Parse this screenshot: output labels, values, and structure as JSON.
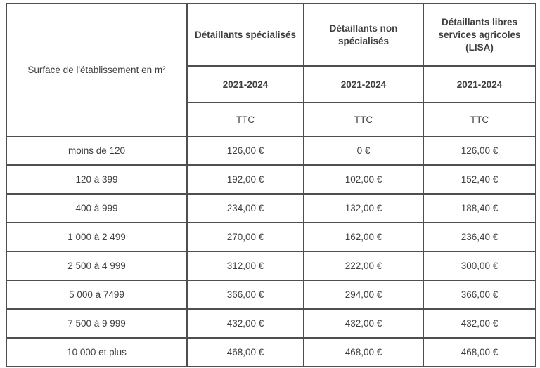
{
  "table": {
    "corner_header": "Surface de l'établissement en m²",
    "columns": [
      {
        "title": "Détaillants spécialisés",
        "period": "2021-2024",
        "tax": "TTC"
      },
      {
        "title": "Détaillants non spécialisés",
        "period": "2021-2024",
        "tax": "TTC"
      },
      {
        "title": "Détaillants libres services agricoles (LISA)",
        "period": "2021-2024",
        "tax": "TTC"
      }
    ],
    "rows": [
      {
        "surface": "moins de 120",
        "values": [
          "126,00 €",
          "0 €",
          "126,00 €"
        ]
      },
      {
        "surface": "120 à 399",
        "values": [
          "192,00 €",
          "102,00 €",
          "152,40 €"
        ]
      },
      {
        "surface": "400 à 999",
        "values": [
          "234,00 €",
          "132,00 €",
          "188,40 €"
        ]
      },
      {
        "surface": "1 000 à 2 499",
        "values": [
          "270,00 €",
          "162,00 €",
          "236,40 €"
        ]
      },
      {
        "surface": "2 500 à 4 999",
        "values": [
          "312,00 €",
          "222,00 €",
          "300,00 €"
        ]
      },
      {
        "surface": "5 000 à 7499",
        "values": [
          "366,00 €",
          "294,00 €",
          "366,00 €"
        ]
      },
      {
        "surface": "7 500 à 9 999",
        "values": [
          "432,00 €",
          "432,00 €",
          "432,00 €"
        ]
      },
      {
        "surface": "10 000 et plus",
        "values": [
          "468,00 €",
          "468,00 €",
          "468,00 €"
        ]
      }
    ],
    "colors": {
      "border": "#4f4f4f",
      "text": "#3f3f3f",
      "background": "#ffffff"
    }
  }
}
